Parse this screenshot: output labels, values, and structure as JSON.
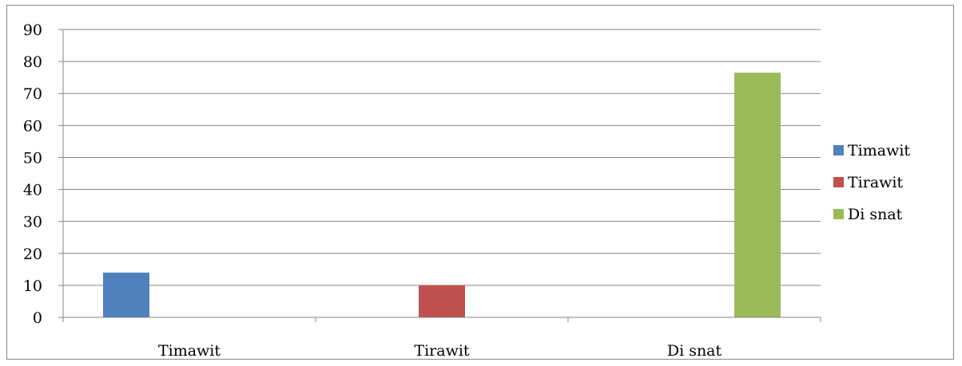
{
  "chart_data": {
    "type": "bar",
    "categories": [
      "Timawit",
      "Tirawit",
      "Di snat"
    ],
    "series": [
      {
        "name": "Timawit",
        "values": [
          14,
          null,
          null
        ],
        "color": "#4F81BD"
      },
      {
        "name": "Tirawit",
        "values": [
          null,
          10,
          null
        ],
        "color": "#C0504D"
      },
      {
        "name": "Di snat",
        "values": [
          null,
          null,
          76.5
        ],
        "color": "#9BBB59"
      }
    ],
    "ylim": [
      0,
      90
    ],
    "yticks": [
      "0",
      "10",
      "20",
      "30",
      "40",
      "50",
      "60",
      "70",
      "80",
      "90"
    ],
    "grid": true,
    "legend_position": "right"
  }
}
